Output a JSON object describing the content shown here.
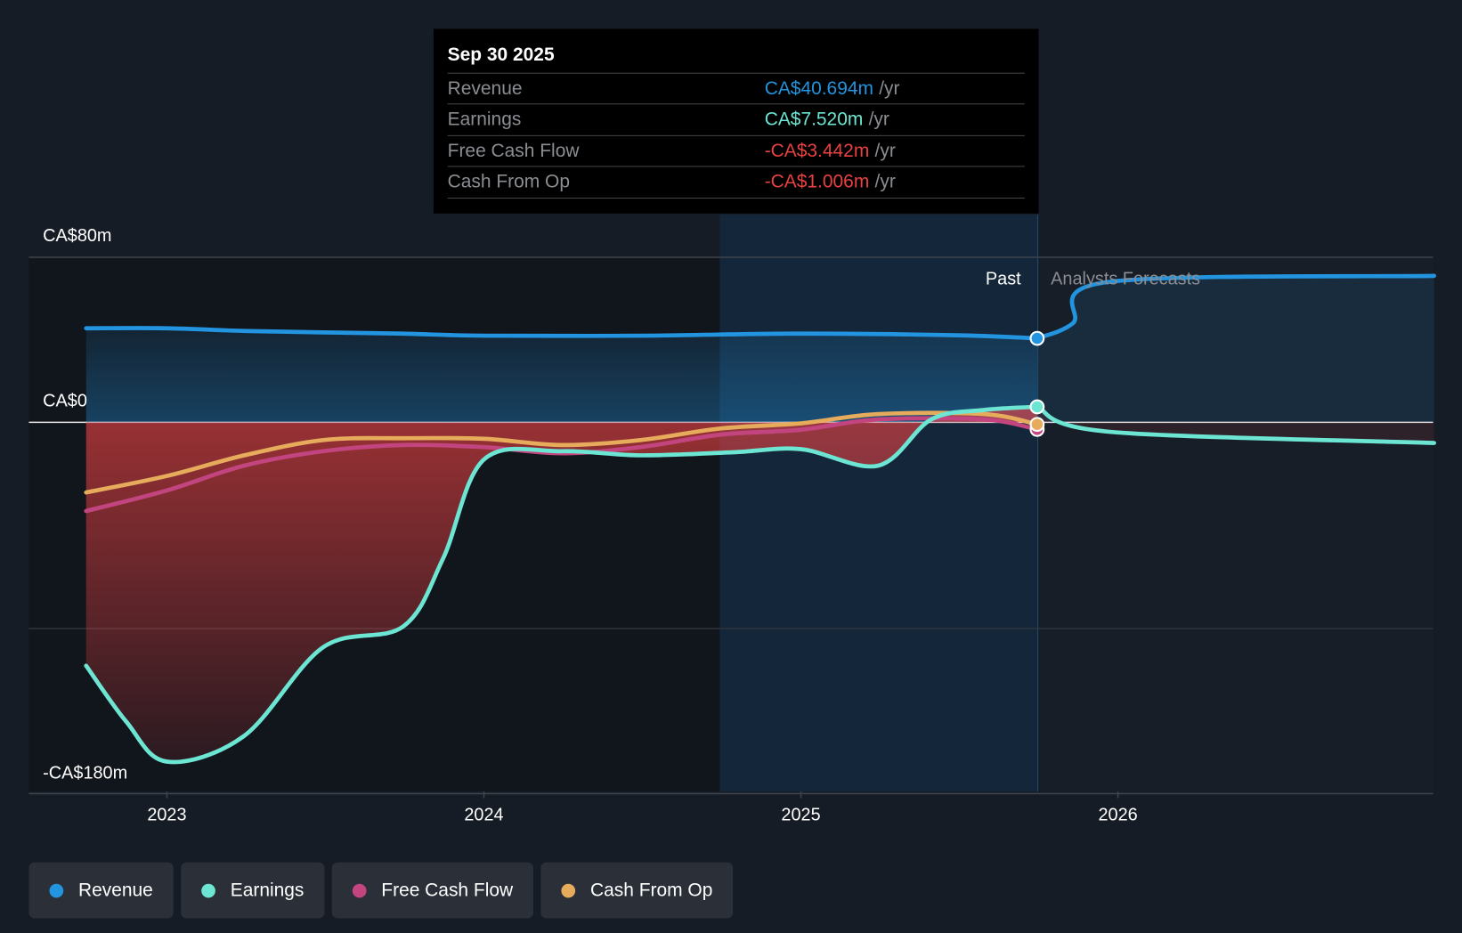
{
  "tooltip": {
    "date": "Sep 30 2025",
    "rows": [
      {
        "label": "Revenue",
        "value": "CA$40.694m",
        "unit": "/yr",
        "color": "#2394df"
      },
      {
        "label": "Earnings",
        "value": "CA$7.520m",
        "unit": "/yr",
        "color": "#6ce5d3"
      },
      {
        "label": "Free Cash Flow",
        "value": "-CA$3.442m",
        "unit": "/yr",
        "color": "#e84142"
      },
      {
        "label": "Cash From Op",
        "value": "-CA$1.006m",
        "unit": "/yr",
        "color": "#e84142"
      }
    ]
  },
  "chart_data": {
    "type": "line",
    "title": "",
    "xlabel": "",
    "ylabel": "",
    "ylim": [
      -180,
      80
    ],
    "y_ticks": [
      {
        "value": 80,
        "label": "CA$80m"
      },
      {
        "value": 0,
        "label": "CA$0"
      },
      {
        "value": -180,
        "label": "-CA$180m"
      }
    ],
    "y_gridlines": [
      80,
      0,
      -100,
      -180
    ],
    "x_ticks": [
      "2023",
      "2024",
      "2025",
      "2026"
    ],
    "x_range": [
      "2022-09-30",
      "2026-12-31"
    ],
    "past_label": "Past",
    "forecast_label": "Analysts Forecasts",
    "past_end": "2025-09-30",
    "highlight_start": "2024-09-30",
    "legend_position": "bottom",
    "series": [
      {
        "name": "Revenue",
        "color": "#2394df",
        "points": [
          [
            "2022-09-30",
            45.6
          ],
          [
            "2023-01-01",
            45.6
          ],
          [
            "2023-03-31",
            44.3
          ],
          [
            "2023-06-30",
            43.6
          ],
          [
            "2023-09-30",
            43.0
          ],
          [
            "2024-01-01",
            42.0
          ],
          [
            "2024-06-30",
            42.0
          ],
          [
            "2025-01-01",
            43.0
          ],
          [
            "2025-06-30",
            42.2
          ],
          [
            "2025-09-30",
            40.7
          ]
        ],
        "forecast": [
          [
            "2025-09-30",
            40.7
          ],
          [
            "2025-11-10",
            48.0
          ],
          [
            "2025-12-20",
            68.0
          ],
          [
            "2026-12-31",
            71.0
          ]
        ]
      },
      {
        "name": "Earnings",
        "color": "#6ce5d3",
        "points": [
          [
            "2022-09-30",
            -118
          ],
          [
            "2022-11-15",
            -145
          ],
          [
            "2023-01-01",
            -164.5
          ],
          [
            "2023-03-31",
            -152
          ],
          [
            "2023-06-30",
            -109
          ],
          [
            "2023-09-30",
            -99
          ],
          [
            "2023-11-15",
            -66
          ],
          [
            "2024-01-01",
            -18
          ],
          [
            "2024-03-31",
            -14
          ],
          [
            "2024-06-30",
            -16
          ],
          [
            "2024-10-15",
            -14.5
          ],
          [
            "2025-01-01",
            -13
          ],
          [
            "2025-03-31",
            -21
          ],
          [
            "2025-05-31",
            1.4
          ],
          [
            "2025-07-31",
            6
          ],
          [
            "2025-09-30",
            7.52
          ]
        ],
        "forecast": [
          [
            "2025-09-30",
            7.52
          ],
          [
            "2025-12-20",
            -4.5
          ],
          [
            "2026-12-31",
            -10
          ]
        ]
      },
      {
        "name": "Free Cash Flow",
        "color": "#c2457f",
        "points": [
          [
            "2022-09-30",
            -43
          ],
          [
            "2023-01-01",
            -33
          ],
          [
            "2023-03-31",
            -21
          ],
          [
            "2023-06-30",
            -14
          ],
          [
            "2023-09-30",
            -11
          ],
          [
            "2024-01-01",
            -12
          ],
          [
            "2024-03-31",
            -15
          ],
          [
            "2024-06-30",
            -12
          ],
          [
            "2024-09-30",
            -6
          ],
          [
            "2025-01-01",
            -3.6
          ],
          [
            "2025-03-31",
            1.4
          ],
          [
            "2025-07-31",
            1.4
          ],
          [
            "2025-09-30",
            -3.442
          ]
        ]
      },
      {
        "name": "Cash From Op",
        "color": "#e6ac5c",
        "points": [
          [
            "2022-09-30",
            -34
          ],
          [
            "2023-01-01",
            -26
          ],
          [
            "2023-03-31",
            -16
          ],
          [
            "2023-06-30",
            -8.6
          ],
          [
            "2023-09-30",
            -7.7
          ],
          [
            "2024-01-01",
            -8
          ],
          [
            "2024-03-31",
            -11
          ],
          [
            "2024-06-30",
            -8.6
          ],
          [
            "2024-09-30",
            -3
          ],
          [
            "2025-01-01",
            -0.5
          ],
          [
            "2025-03-31",
            4
          ],
          [
            "2025-07-31",
            4
          ],
          [
            "2025-09-30",
            -1.006
          ]
        ]
      }
    ]
  },
  "legend": [
    {
      "label": "Revenue",
      "color": "#2394df"
    },
    {
      "label": "Earnings",
      "color": "#6ce5d3"
    },
    {
      "label": "Free Cash Flow",
      "color": "#c2457f"
    },
    {
      "label": "Cash From Op",
      "color": "#e6ac5c"
    }
  ]
}
